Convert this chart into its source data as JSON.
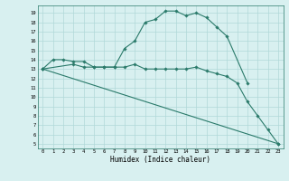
{
  "xlabel": "Humidex (Indice chaleur)",
  "background_color": "#d8f0f0",
  "grid_color": "#b0d8d8",
  "line_color": "#2a7a6a",
  "xlim": [
    -0.5,
    23.5
  ],
  "ylim": [
    4.5,
    19.8
  ],
  "xticks": [
    0,
    1,
    2,
    3,
    4,
    5,
    6,
    7,
    8,
    9,
    10,
    11,
    12,
    13,
    14,
    15,
    16,
    17,
    18,
    19,
    20,
    21,
    22,
    23
  ],
  "yticks": [
    5,
    6,
    7,
    8,
    9,
    10,
    11,
    12,
    13,
    14,
    15,
    16,
    17,
    18,
    19
  ],
  "series": [
    {
      "x": [
        0,
        1,
        2,
        3,
        4,
        5,
        6,
        7,
        8,
        9,
        10,
        11,
        12,
        13,
        14,
        15,
        16,
        17,
        18,
        20
      ],
      "y": [
        13,
        14,
        14,
        13.8,
        13.8,
        13.2,
        13.2,
        13.2,
        15.2,
        16.0,
        18.0,
        18.3,
        19.2,
        19.2,
        18.7,
        19.0,
        18.5,
        17.5,
        16.5,
        11.5
      ],
      "marker": "D",
      "markersize": 1.8,
      "linewidth": 0.8
    },
    {
      "x": [
        0,
        3,
        4,
        5,
        6,
        7,
        8,
        9,
        10,
        11,
        12,
        13,
        14,
        15,
        16,
        17,
        18,
        19,
        20,
        21,
        22,
        23
      ],
      "y": [
        13,
        13.5,
        13.2,
        13.2,
        13.2,
        13.2,
        13.2,
        13.5,
        13.0,
        13.0,
        13.0,
        13.0,
        13.0,
        13.2,
        12.8,
        12.5,
        12.2,
        11.5,
        9.5,
        8.0,
        6.5,
        5.0
      ],
      "marker": "D",
      "markersize": 1.8,
      "linewidth": 0.8
    },
    {
      "x": [
        0,
        23
      ],
      "y": [
        13,
        5.0
      ],
      "marker": "D",
      "markersize": 1.8,
      "linewidth": 0.8
    }
  ]
}
